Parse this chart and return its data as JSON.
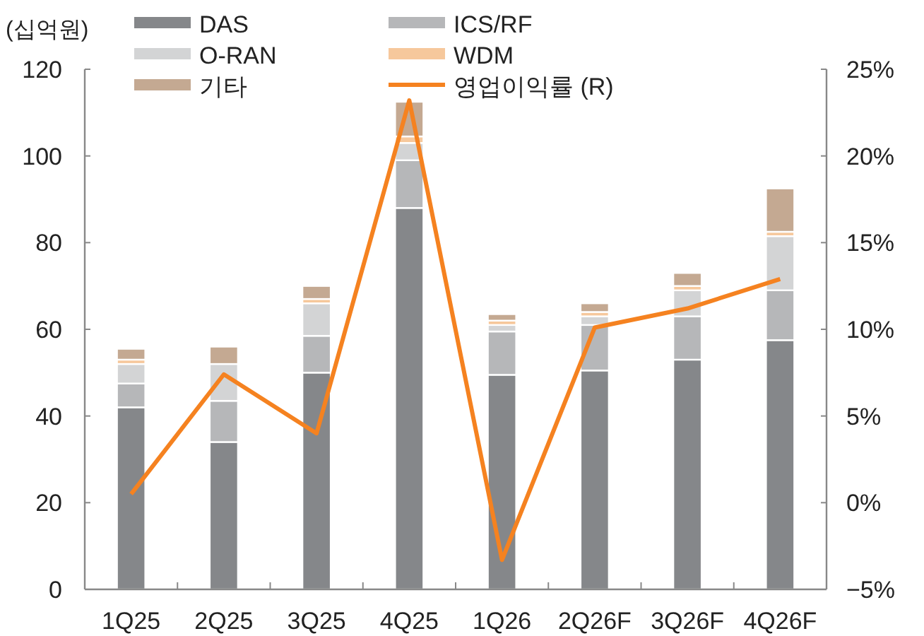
{
  "chart_data": {
    "type": "bar",
    "stacked": true,
    "ylabel": "(십억원)",
    "categories": [
      "1Q25",
      "2Q25",
      "3Q25",
      "4Q25",
      "1Q26",
      "2Q26F",
      "3Q26F",
      "4Q26F"
    ],
    "ylim": [
      0,
      120
    ],
    "yticks": [
      0,
      20,
      40,
      60,
      80,
      100,
      120
    ],
    "y2lim": [
      -5,
      25
    ],
    "y2ticks": [
      {
        "value": -5,
        "label": "−5%"
      },
      {
        "value": 0,
        "label": "0%"
      },
      {
        "value": 5,
        "label": "5%"
      },
      {
        "value": 10,
        "label": "10%"
      },
      {
        "value": 15,
        "label": "15%"
      },
      {
        "value": 20,
        "label": "20%"
      },
      {
        "value": 25,
        "label": "25%"
      }
    ],
    "legend": "top",
    "grid": false,
    "series": [
      {
        "name": "DAS",
        "color": "#85878a",
        "values": [
          42,
          34,
          50,
          88,
          49.5,
          50.5,
          53,
          57.5
        ]
      },
      {
        "name": "ICS/RF",
        "color": "#b6b7b9",
        "values": [
          5.5,
          9.5,
          8.5,
          11,
          10,
          10.5,
          10,
          11.5
        ]
      },
      {
        "name": "O-RAN",
        "color": "#d3d4d5",
        "values": [
          4.5,
          8.5,
          7.5,
          4,
          1.5,
          2,
          6,
          12.5
        ]
      },
      {
        "name": "WDM",
        "color": "#f6c89c",
        "values": [
          1,
          null,
          1,
          1.5,
          1,
          1,
          1,
          1
        ]
      },
      {
        "name": "기타",
        "color": "#c4a992",
        "values": [
          2.5,
          4,
          3,
          8,
          1.5,
          2,
          3,
          10
        ]
      },
      {
        "name": "영업이익률 (R)",
        "type": "line",
        "axis": "y2",
        "color": "#f58220",
        "values": [
          0.5,
          7.4,
          4.0,
          23.2,
          -3.3,
          10.1,
          11.2,
          12.9
        ]
      }
    ]
  }
}
